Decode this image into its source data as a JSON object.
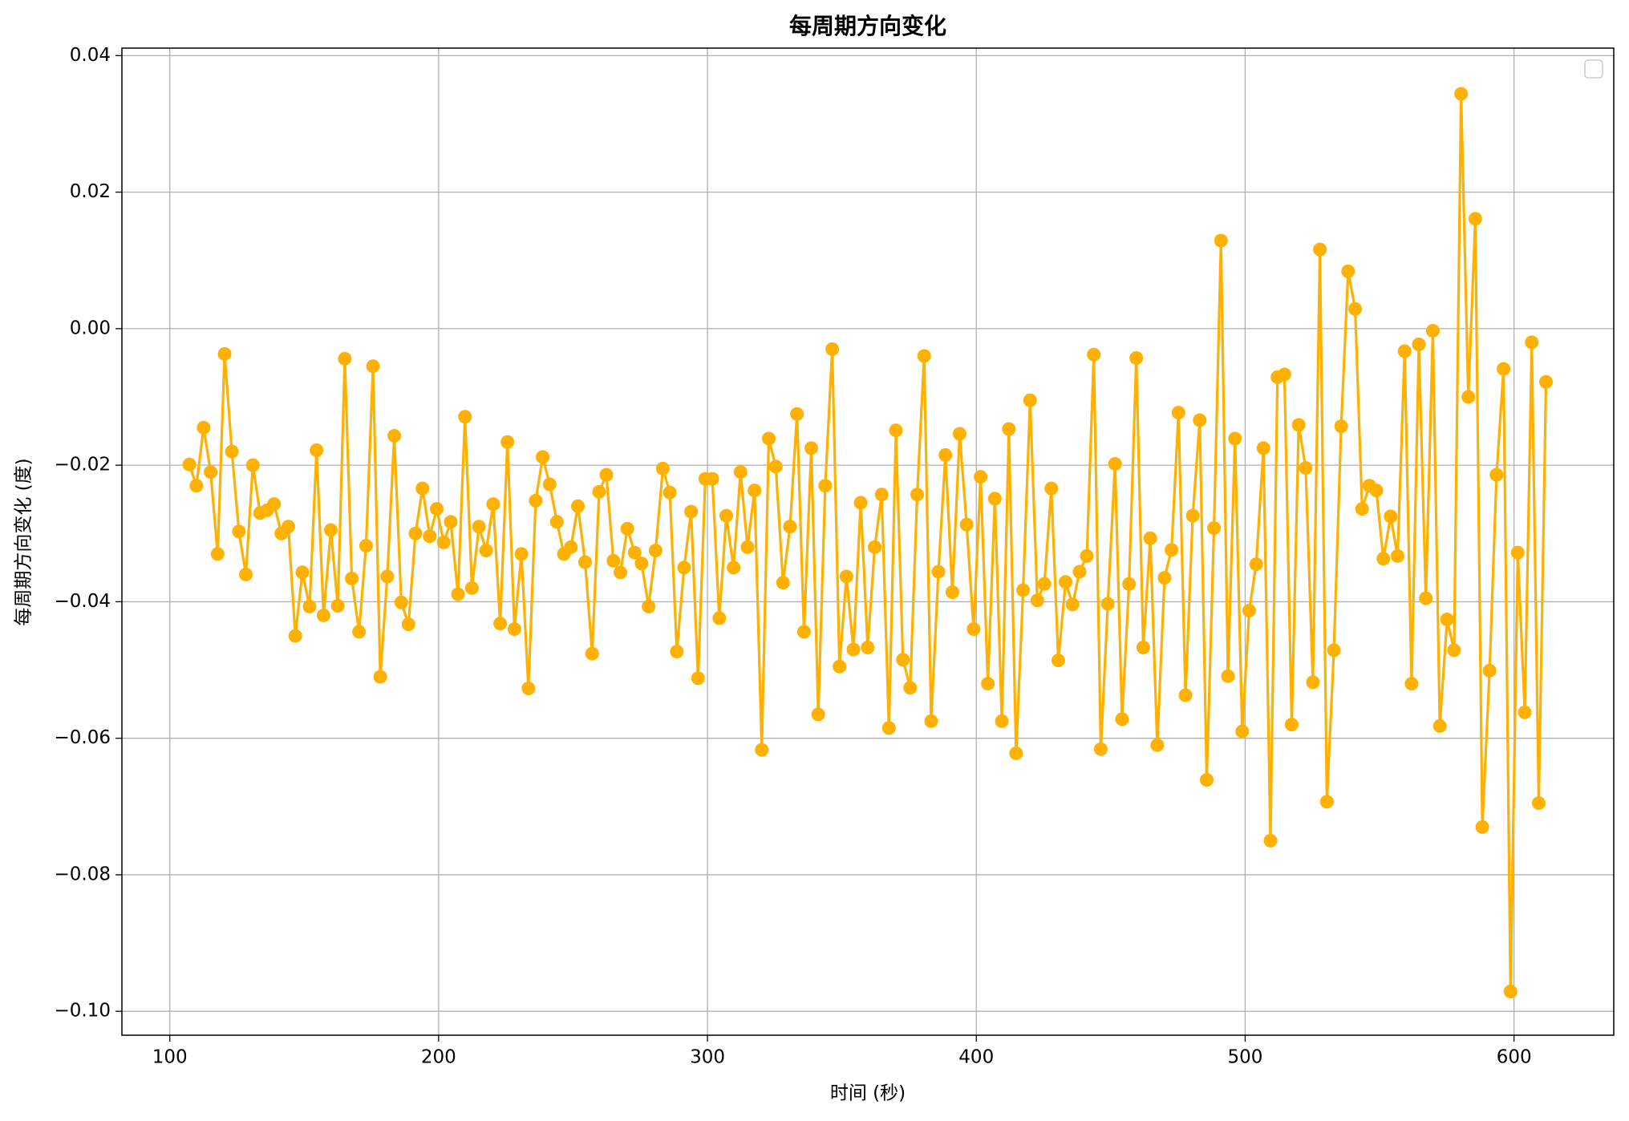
{
  "chart_data": {
    "type": "line",
    "title": "每周期方向变化",
    "xlabel": "时间 (秒)",
    "ylabel": "每周期方向变化 (度)",
    "color": "#ffb000",
    "grid": true,
    "x": [
      107.3,
      109.9,
      112.6,
      115.2,
      117.8,
      120.4,
      123.1,
      125.7,
      128.3,
      130.9,
      133.6,
      136.2,
      138.8,
      141.5,
      144.1,
      146.7,
      149.3,
      152.0,
      154.6,
      157.2,
      159.9,
      162.5,
      165.1,
      167.7,
      170.4,
      173.0,
      175.6,
      178.3,
      180.9,
      183.5,
      186.1,
      188.8,
      191.4,
      194.0,
      196.7,
      199.3,
      201.9,
      204.5,
      207.2,
      209.8,
      212.4,
      215.0,
      217.7,
      220.3,
      222.9,
      225.6,
      228.2,
      230.8,
      233.4,
      236.1,
      238.7,
      241.3,
      244.0,
      246.6,
      249.2,
      251.8,
      254.5,
      257.1,
      259.7,
      262.4,
      265.0,
      267.6,
      270.2,
      272.9,
      275.5,
      278.1,
      280.7,
      283.4,
      286.0,
      288.6,
      291.3,
      293.9,
      296.5,
      299.2,
      301.8,
      304.4,
      307.0,
      309.7,
      312.3,
      314.9,
      317.5,
      320.2,
      322.8,
      325.4,
      328.1,
      330.7,
      333.3,
      335.9,
      338.6,
      341.2,
      343.8,
      346.4,
      349.1,
      351.7,
      354.3,
      357.0,
      359.6,
      362.2,
      364.8,
      367.5,
      370.1,
      372.7,
      375.4,
      378.0,
      380.6,
      383.2,
      385.9,
      388.5,
      391.1,
      393.8,
      396.4,
      399.0,
      401.6,
      404.3,
      406.9,
      409.5,
      412.1,
      414.8,
      417.4,
      420.0,
      422.7,
      425.3,
      427.9,
      430.5,
      433.2,
      435.8,
      438.4,
      441.1,
      443.7,
      446.3,
      448.9,
      451.6,
      454.2,
      456.8,
      459.5,
      462.1,
      464.7,
      467.3,
      470.0,
      472.6,
      475.2,
      477.8,
      480.5,
      483.1,
      485.7,
      488.4,
      491.0,
      493.6,
      496.2,
      498.9,
      501.5,
      504.1,
      506.8,
      509.4,
      512.0,
      514.6,
      517.3,
      519.9,
      522.5,
      525.2,
      527.8,
      530.4,
      533.0,
      535.7,
      538.3,
      540.9,
      543.5,
      546.2,
      548.8,
      551.4,
      554.1,
      556.7,
      559.3,
      561.9,
      564.6,
      567.2,
      569.8,
      572.4,
      575.1,
      577.7,
      580.3,
      583.0,
      585.6,
      588.2,
      590.9,
      593.5,
      596.1,
      598.7,
      601.4,
      604.0,
      606.6,
      609.2,
      611.9
    ],
    "values": [
      -0.0199,
      -0.023,
      -0.0145,
      -0.021,
      -0.033,
      -0.0037,
      -0.018,
      -0.0297,
      -0.036,
      -0.02,
      -0.027,
      -0.0266,
      -0.0257,
      -0.03,
      -0.029,
      -0.045,
      -0.0357,
      -0.0407,
      -0.0178,
      -0.042,
      -0.0295,
      -0.0406,
      -0.0044,
      -0.0366,
      -0.0444,
      -0.0318,
      -0.0055,
      -0.051,
      -0.0363,
      -0.0157,
      -0.0401,
      -0.0433,
      -0.03,
      -0.0234,
      -0.0304,
      -0.0264,
      -0.0313,
      -0.0283,
      -0.0389,
      -0.0129,
      -0.038,
      -0.029,
      -0.0325,
      -0.0257,
      -0.0432,
      -0.0166,
      -0.044,
      -0.033,
      -0.0527,
      -0.0252,
      -0.0188,
      -0.0228,
      -0.0283,
      -0.033,
      -0.032,
      -0.026,
      -0.0342,
      -0.0476,
      -0.0239,
      -0.0214,
      -0.034,
      -0.0357,
      -0.0293,
      -0.0328,
      -0.0344,
      -0.0407,
      -0.0325,
      -0.0205,
      -0.024,
      -0.0473,
      -0.035,
      -0.0268,
      -0.0512,
      -0.022,
      -0.022,
      -0.0424,
      -0.0274,
      -0.035,
      -0.021,
      -0.032,
      -0.0237,
      -0.0617,
      -0.0161,
      -0.0202,
      -0.0372,
      -0.029,
      -0.0125,
      -0.0444,
      -0.0175,
      -0.0565,
      -0.023,
      -0.003,
      -0.0495,
      -0.0363,
      -0.047,
      -0.0255,
      -0.0467,
      -0.032,
      -0.0243,
      -0.0585,
      -0.0149,
      -0.0485,
      -0.0526,
      -0.0243,
      -0.004,
      -0.0575,
      -0.0356,
      -0.0185,
      -0.0386,
      -0.0154,
      -0.0287,
      -0.044,
      -0.0217,
      -0.052,
      -0.0249,
      -0.0575,
      -0.0147,
      -0.0622,
      -0.0383,
      -0.0105,
      -0.0398,
      -0.0374,
      -0.0234,
      -0.0486,
      -0.0371,
      -0.0404,
      -0.0356,
      -0.0333,
      -0.0038,
      -0.0616,
      -0.0403,
      -0.0198,
      -0.0572,
      -0.0374,
      -0.0043,
      -0.0467,
      -0.0307,
      -0.061,
      -0.0365,
      -0.0324,
      -0.0123,
      -0.0537,
      -0.0274,
      -0.0134,
      -0.0661,
      -0.0292,
      0.0129,
      -0.0509,
      -0.0161,
      -0.059,
      -0.0413,
      -0.0345,
      -0.0175,
      -0.075,
      -0.0071,
      -0.0067,
      -0.058,
      -0.0141,
      -0.0204,
      -0.0518,
      0.0116,
      -0.0693,
      -0.0471,
      -0.0143,
      0.0084,
      0.0029,
      -0.0264,
      -0.023,
      -0.0237,
      -0.0337,
      -0.0275,
      -0.0333,
      -0.0033,
      -0.052,
      -0.0023,
      -0.0395,
      -0.0003,
      -0.0582,
      -0.0426,
      -0.0471,
      0.0344,
      -0.01,
      0.0161,
      -0.073,
      -0.0501,
      -0.0214,
      -0.0059,
      -0.0971,
      -0.0328,
      -0.0562,
      -0.002,
      -0.0695,
      -0.0078
    ],
    "xlim": [
      82.2,
      637.1
    ],
    "xticks": [
      100,
      200,
      300,
      400,
      500,
      600
    ],
    "ylim": [
      -0.1035,
      0.0411
    ],
    "yticks": [
      {
        "value": -0.1,
        "label": "−0.10"
      },
      {
        "value": -0.08,
        "label": "−0.08"
      },
      {
        "value": -0.06,
        "label": "−0.06"
      },
      {
        "value": -0.04,
        "label": "−0.04"
      },
      {
        "value": -0.02,
        "label": "−0.02"
      },
      {
        "value": 0,
        "label": "0.00"
      },
      0.02,
      0.04
    ]
  }
}
